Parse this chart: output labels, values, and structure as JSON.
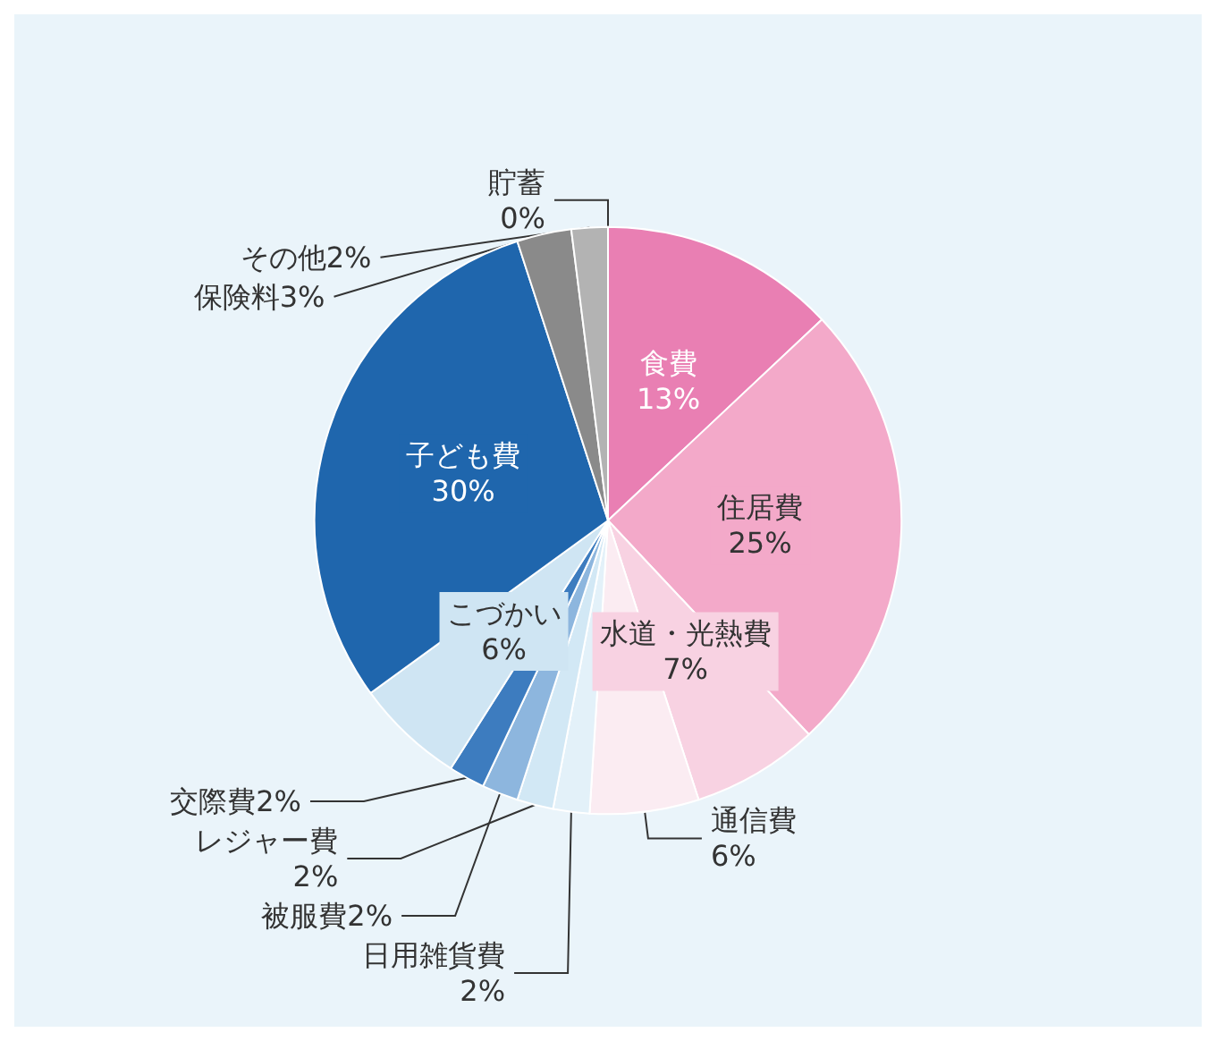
{
  "chart_data": {
    "type": "pie",
    "categories": [
      "貯蓄",
      "食費",
      "住居費",
      "水道・光熱費",
      "通信費",
      "日用雑貨費",
      "レジャー費",
      "被服費",
      "交際費",
      "こづかい",
      "子ども費",
      "保険料",
      "その他"
    ],
    "values": [
      0,
      13,
      25,
      7,
      6,
      2,
      2,
      2,
      2,
      6,
      30,
      3,
      2
    ],
    "value_labels": [
      "0%",
      "13%",
      "25%",
      "7%",
      "6%",
      "2%",
      "2%",
      "2%",
      "2%",
      "6%",
      "30%",
      "3%",
      "2%"
    ],
    "colors": [
      "#d9d9d9",
      "#e97fb3",
      "#f3a9c9",
      "#f8d2e2",
      "#fbecf2",
      "#e3f1f9",
      "#d2e8f5",
      "#8db6de",
      "#3d7cbf",
      "#cfe5f3",
      "#1f66ad",
      "#8a8a8a",
      "#b3b3b3"
    ],
    "legend": false
  }
}
